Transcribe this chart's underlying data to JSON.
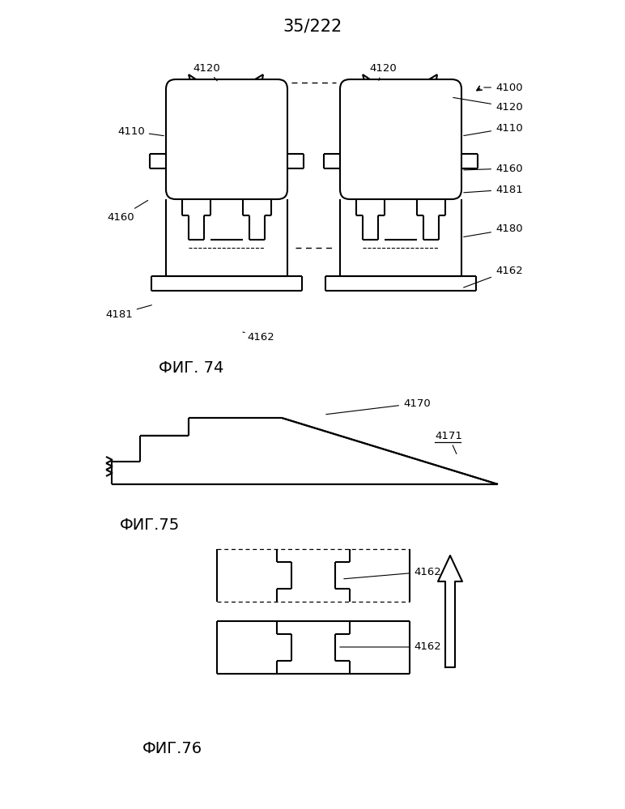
{
  "title": "35/222",
  "title_fontsize": 15,
  "fig74_label": "ФИГ. 74",
  "fig75_label": "ФИГ.75",
  "fig76_label": "ФИГ.76",
  "fig_label_fontsize": 14,
  "background_color": "#ffffff",
  "line_color": "#000000",
  "line_width": 1.5,
  "ann_fontsize": 9.5
}
